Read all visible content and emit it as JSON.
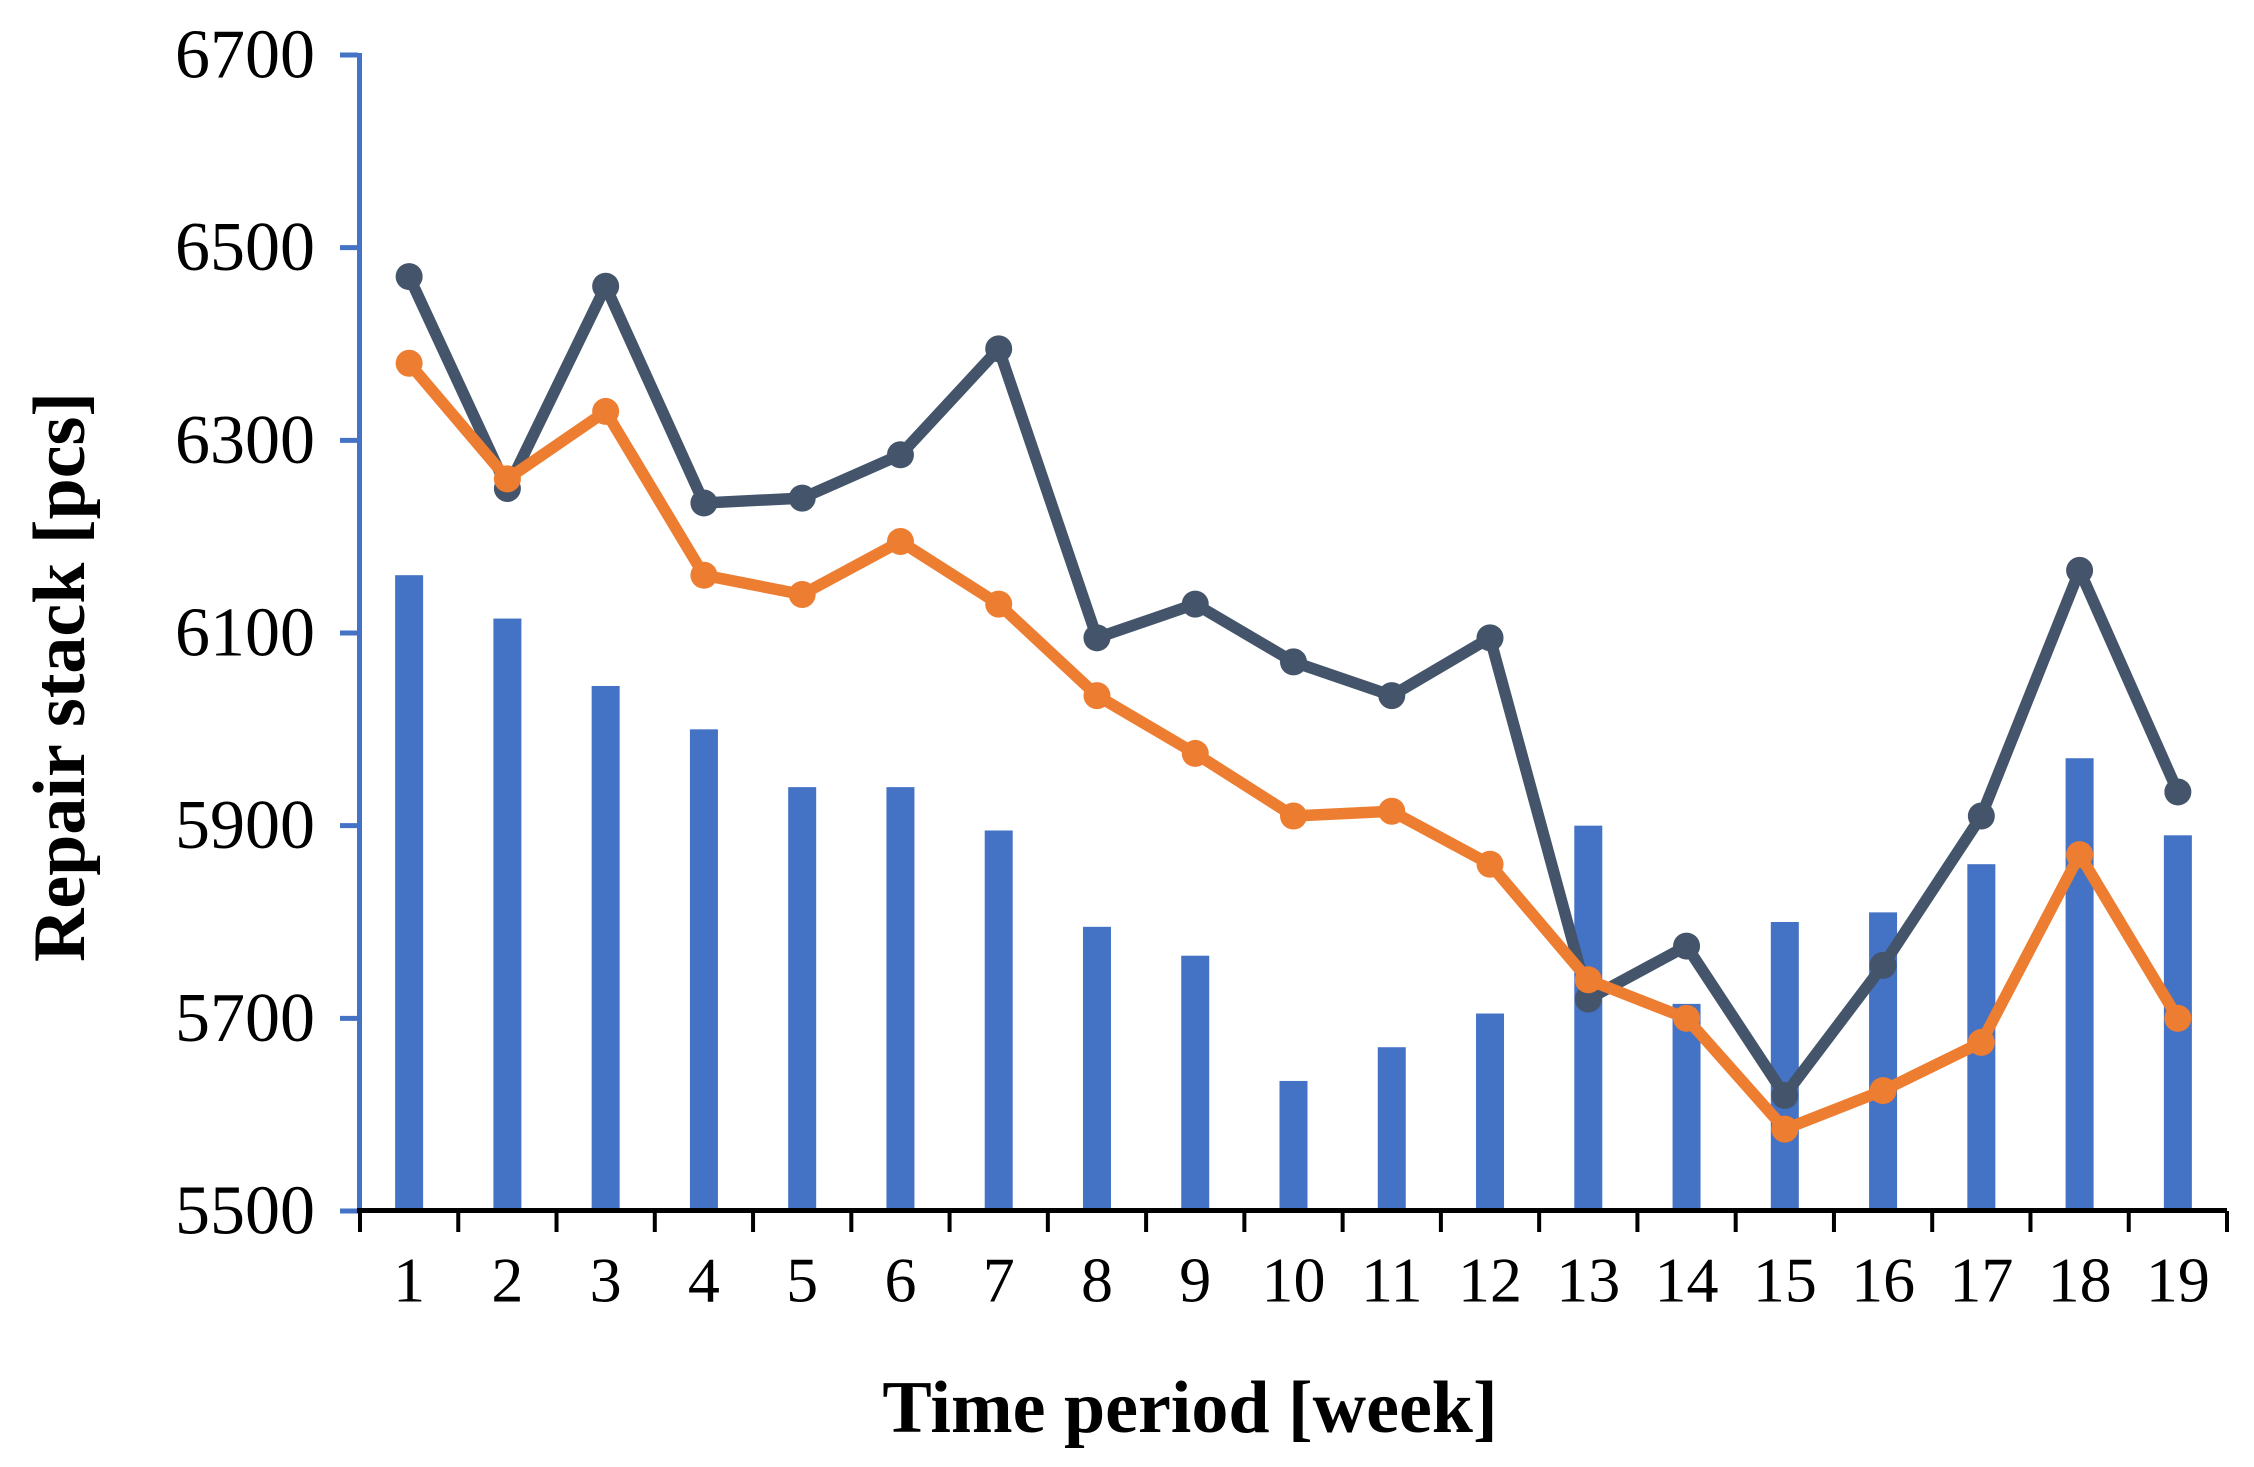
{
  "chart_data": {
    "type": "combo-bar-line",
    "title": "",
    "xlabel": "Time period [week]",
    "ylabel": "Repair stack [pcs]",
    "categories": [
      "1",
      "2",
      "3",
      "4",
      "5",
      "6",
      "7",
      "8",
      "9",
      "10",
      "11",
      "12",
      "13",
      "14",
      "15",
      "16",
      "17",
      "18",
      "19"
    ],
    "ylim": [
      5500,
      6700
    ],
    "ytick_step": 200,
    "yticks": [
      5500,
      5700,
      5900,
      6100,
      6300,
      6500,
      6700
    ],
    "grid": false,
    "legend": false,
    "series": [
      {
        "name": "repair-stack-bars",
        "type": "bar",
        "color": "#4472C4",
        "values": [
          6160,
          6115,
          6045,
          6000,
          5940,
          5940,
          5895,
          5795,
          5765,
          5635,
          5670,
          5705,
          5900,
          5715,
          5800,
          5810,
          5860,
          5970,
          5890
        ]
      },
      {
        "name": "dark-line",
        "type": "line",
        "color": "#44546A",
        "values": [
          6470,
          6250,
          6460,
          6235,
          6240,
          6285,
          6395,
          6095,
          6130,
          6070,
          6035,
          6095,
          5720,
          5775,
          5620,
          5755,
          5910,
          6165,
          5935
        ]
      },
      {
        "name": "orange-line",
        "type": "line",
        "color": "#ED7D31",
        "values": [
          6380,
          6260,
          6330,
          6160,
          6140,
          6195,
          6130,
          6035,
          5975,
          5910,
          5915,
          5860,
          5740,
          5700,
          5585,
          5625,
          5675,
          5870,
          5700
        ]
      }
    ],
    "axis_colors": {
      "y_axis": "#4472C4",
      "x_axis": "#000000"
    }
  }
}
